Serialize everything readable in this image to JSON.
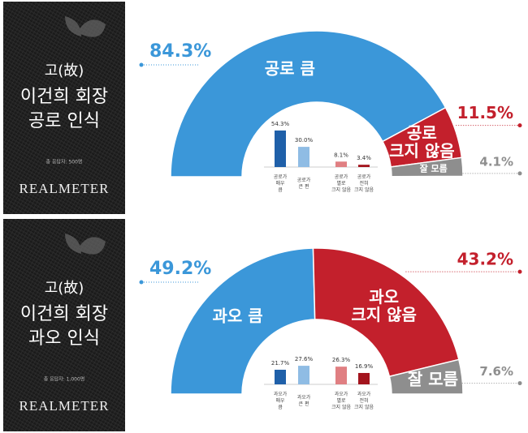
{
  "panels": [
    {
      "sidebar": {
        "title_lines": [
          "고(故)",
          "이건희 회장",
          "공로 인식"
        ],
        "note": "총 응답자: 500명",
        "brand": "REALMETER"
      }
    },
    {
      "sidebar": {
        "title_lines": [
          "고(故)",
          "이건희 회장",
          "과오 인식"
        ],
        "note": "총 응답자: 1,000명",
        "brand": "REALMETER"
      }
    }
  ],
  "chart_data": [
    {
      "type": "semi-donut",
      "categories": [
        "공로 큼",
        "공로\n크지 않음",
        "잘 모름"
      ],
      "values": [
        84.3,
        11.5,
        4.1
      ],
      "value_labels": [
        "84.3%",
        "11.5%",
        "4.1%"
      ],
      "colors": [
        "#3b97d9",
        "#c3202c",
        "#8e8e8e"
      ]
    },
    {
      "type": "bar",
      "categories": [
        "공로가\n매우\n큼",
        "공로가\n큰 편",
        "공로가\n별로\n크지 않음",
        "공로가\n전혀\n크지 않음"
      ],
      "values": [
        54.3,
        30.0,
        8.1,
        3.4
      ],
      "value_labels": [
        "54.3%",
        "30.0%",
        "8.1%",
        "3.4%"
      ],
      "colors": [
        "#1f60a9",
        "#8fbce4",
        "#e07f82",
        "#a3141d"
      ]
    },
    {
      "type": "semi-donut",
      "categories": [
        "과오 큼",
        "과오\n크지 않음",
        "잘 모름"
      ],
      "values": [
        49.2,
        43.2,
        7.6
      ],
      "value_labels": [
        "49.2%",
        "43.2%",
        "7.6%"
      ],
      "colors": [
        "#3b97d9",
        "#c3202c",
        "#8e8e8e"
      ]
    },
    {
      "type": "bar",
      "categories": [
        "과오가\n매우\n큼",
        "과오가\n큰 편",
        "과오가\n별로\n크지 않음",
        "과오가\n전혀\n크지 않음"
      ],
      "values": [
        21.7,
        27.6,
        26.3,
        16.9
      ],
      "value_labels": [
        "21.7%",
        "27.6%",
        "26.3%",
        "16.9%"
      ],
      "colors": [
        "#1f60a9",
        "#8fbce4",
        "#e07f82",
        "#a3141d"
      ]
    }
  ]
}
